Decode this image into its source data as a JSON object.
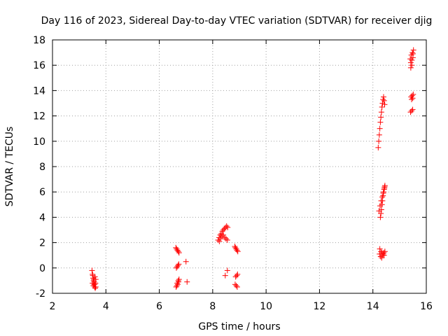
{
  "chart_data": {
    "type": "scatter",
    "title": "Day 116 of 2023, Sidereal Day-to-day VTEC variation (SDTVAR) for receiver djig",
    "xlabel": "GPS time / hours",
    "ylabel": "SDTVAR / TECUs",
    "xlim": [
      2,
      16
    ],
    "ylim": [
      -2,
      18
    ],
    "xticks": [
      2,
      4,
      6,
      8,
      10,
      12,
      14,
      16
    ],
    "yticks": [
      -2,
      0,
      2,
      4,
      6,
      8,
      10,
      12,
      14,
      16,
      18
    ],
    "grid": true,
    "marker": "plus",
    "color": "#ff0000",
    "series": [
      {
        "name": "",
        "x": [
          3.48,
          3.5,
          3.52,
          3.54,
          3.56,
          3.58,
          3.6,
          3.62,
          3.5,
          3.53,
          3.56,
          3.59,
          3.62,
          3.51,
          3.55,
          3.58,
          3.61,
          6.62,
          6.65,
          6.68,
          6.71,
          6.74,
          6.64,
          6.67,
          6.7,
          6.73,
          6.66,
          6.69,
          6.72,
          6.63,
          6.67,
          6.71,
          6.74,
          7.0,
          7.04,
          8.2,
          8.24,
          8.28,
          8.32,
          8.36,
          8.4,
          8.44,
          8.48,
          8.52,
          8.56,
          8.25,
          8.3,
          8.35,
          8.4,
          8.45,
          8.5,
          8.55,
          8.55,
          8.47,
          8.83,
          8.85,
          8.88,
          8.91,
          8.94,
          8.86,
          8.9,
          8.93,
          8.84,
          8.88,
          8.92,
          14.2,
          14.22,
          14.24,
          14.26,
          14.28,
          14.3,
          14.32,
          14.34,
          14.36,
          14.38,
          14.4,
          14.42,
          14.44,
          14.23,
          14.27,
          14.31,
          14.35,
          14.39,
          14.43,
          14.28,
          14.3,
          14.32,
          14.34,
          14.36,
          14.38,
          14.4,
          14.42,
          14.44,
          14.45,
          14.26,
          14.3,
          14.34,
          14.38,
          14.42,
          14.25,
          14.29,
          14.33,
          14.37,
          14.41,
          14.45,
          15.4,
          15.44,
          15.48,
          15.52,
          15.42,
          15.46,
          15.5,
          15.43,
          15.47,
          15.51,
          15.45,
          15.49,
          15.41,
          15.45,
          15.49,
          15.42,
          15.46,
          15.5
        ],
        "y": [
          -0.2,
          -0.5,
          -0.8,
          -1.0,
          -1.3,
          -1.5,
          -1.6,
          -0.9,
          -1.2,
          -1.4,
          -1.1,
          -0.7,
          -1.5,
          -0.6,
          -0.9,
          -1.3,
          -1.2,
          1.6,
          1.5,
          1.4,
          1.3,
          1.2,
          0.0,
          0.1,
          0.2,
          0.3,
          -1.4,
          -1.3,
          -1.1,
          -1.5,
          -1.2,
          -1.0,
          -0.9,
          0.5,
          -1.1,
          2.2,
          2.4,
          2.6,
          2.7,
          2.9,
          3.0,
          3.1,
          3.2,
          3.3,
          3.2,
          2.1,
          2.3,
          2.5,
          2.6,
          2.4,
          2.3,
          2.2,
          -0.2,
          -0.6,
          1.7,
          1.6,
          1.5,
          1.4,
          1.3,
          -0.7,
          -0.6,
          -0.5,
          -1.3,
          -1.4,
          -1.5,
          9.5,
          10.0,
          10.5,
          11.0,
          11.5,
          11.9,
          12.3,
          12.7,
          13.0,
          13.3,
          13.5,
          13.2,
          12.9,
          4.5,
          4.9,
          5.3,
          5.6,
          5.9,
          6.3,
          4.0,
          4.3,
          4.6,
          5.0,
          5.3,
          5.7,
          6.0,
          6.2,
          6.4,
          6.5,
          1.5,
          1.3,
          1.2,
          1.1,
          1.0,
          1.1,
          0.9,
          0.8,
          1.0,
          1.2,
          1.3,
          16.5,
          16.8,
          17.0,
          17.2,
          16.2,
          16.4,
          16.6,
          13.5,
          13.6,
          13.7,
          13.3,
          13.4,
          12.3,
          12.4,
          12.5,
          15.8,
          16.0,
          16.9
        ]
      }
    ]
  }
}
